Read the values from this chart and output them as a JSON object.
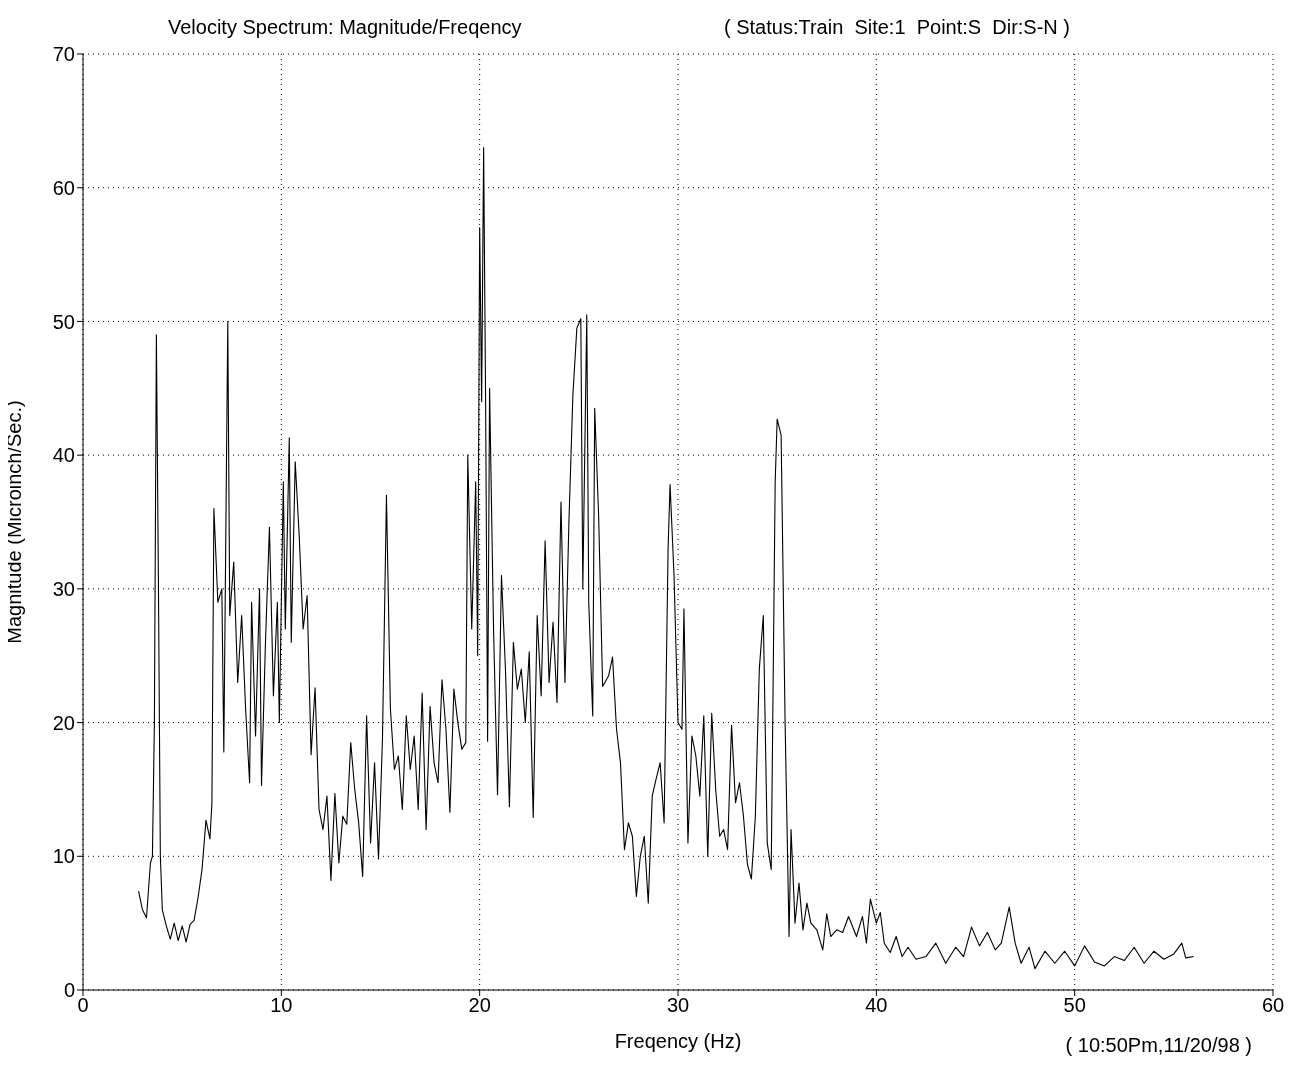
{
  "chart_data": {
    "type": "line",
    "title": "Velocity Spectrum: Magnitude/Freqency",
    "subtitle": "( Status:Train  Site:1  Point:S  Dir:S-N )",
    "xlabel": "Freqency (Hz)",
    "ylabel": "Magnitude (Microinch/Sec.)",
    "annotations": [
      "( 10:50Pm,11/20/98 )"
    ],
    "x": [
      2.8,
      3.0,
      3.2,
      3.4,
      3.5,
      3.6,
      3.7,
      3.8,
      3.9,
      4.0,
      4.2,
      4.4,
      4.6,
      4.8,
      5.0,
      5.2,
      5.4,
      5.6,
      5.8,
      6.0,
      6.2,
      6.4,
      6.5,
      6.6,
      6.8,
      7.0,
      7.1,
      7.3,
      7.4,
      7.6,
      7.8,
      8.0,
      8.2,
      8.4,
      8.5,
      8.7,
      8.9,
      9.0,
      9.2,
      9.4,
      9.6,
      9.8,
      9.9,
      10.1,
      10.2,
      10.4,
      10.5,
      10.7,
      10.9,
      11.1,
      11.3,
      11.5,
      11.7,
      11.9,
      12.1,
      12.3,
      12.5,
      12.7,
      12.9,
      13.1,
      13.3,
      13.5,
      13.7,
      13.9,
      14.1,
      14.3,
      14.5,
      14.7,
      14.9,
      15.1,
      15.3,
      15.5,
      15.7,
      15.9,
      16.1,
      16.3,
      16.5,
      16.7,
      16.9,
      17.1,
      17.3,
      17.5,
      17.7,
      17.9,
      18.1,
      18.3,
      18.5,
      18.7,
      18.9,
      19.1,
      19.3,
      19.4,
      19.6,
      19.8,
      19.9,
      20.0,
      20.1,
      20.2,
      20.3,
      20.4,
      20.5,
      20.7,
      20.9,
      21.1,
      21.3,
      21.5,
      21.7,
      21.9,
      22.1,
      22.3,
      22.5,
      22.7,
      22.9,
      23.1,
      23.3,
      23.5,
      23.7,
      23.9,
      24.1,
      24.3,
      24.5,
      24.7,
      24.9,
      25.1,
      25.2,
      25.4,
      25.5,
      25.7,
      25.8,
      26.0,
      26.2,
      26.5,
      26.7,
      26.9,
      27.1,
      27.3,
      27.5,
      27.7,
      27.9,
      28.1,
      28.3,
      28.5,
      28.7,
      28.9,
      29.1,
      29.3,
      29.5,
      29.6,
      29.8,
      30.0,
      30.2,
      30.3,
      30.5,
      30.7,
      30.9,
      31.1,
      31.3,
      31.5,
      31.7,
      31.9,
      32.1,
      32.3,
      32.5,
      32.7,
      32.9,
      33.1,
      33.3,
      33.5,
      33.7,
      33.9,
      34.1,
      34.3,
      34.5,
      34.7,
      34.9,
      35.0,
      35.2,
      35.4,
      35.6,
      35.7,
      35.9,
      36.1,
      36.3,
      36.5,
      36.7,
      37.0,
      37.3,
      37.5,
      37.7,
      38.0,
      38.3,
      38.6,
      39.0,
      39.3,
      39.5,
      39.7,
      40.0,
      40.2,
      40.4,
      40.7,
      41.0,
      41.3,
      41.6,
      42.0,
      42.5,
      43.0,
      43.5,
      44.0,
      44.4,
      44.8,
      45.2,
      45.6,
      46.0,
      46.3,
      46.7,
      47.0,
      47.3,
      47.7,
      48.0,
      48.5,
      49.0,
      49.5,
      50.0,
      50.5,
      51.0,
      51.5,
      52.0,
      52.5,
      53.0,
      53.5,
      54.0,
      54.5,
      55.0,
      55.4,
      55.6,
      56.0
    ],
    "series": [
      {
        "color": "#000000",
        "values": [
          7.4,
          6.0,
          5.4,
          9.5,
          10,
          20,
          49,
          31,
          10,
          6,
          4.8,
          3.8,
          5.0,
          3.7,
          4.8,
          3.6,
          4.9,
          5.2,
          6.9,
          9,
          12.7,
          11.3,
          14,
          36,
          29,
          30,
          17.8,
          50,
          28,
          32,
          23,
          28,
          21,
          15.5,
          29,
          19,
          30,
          15.3,
          26,
          34.6,
          22,
          29,
          20,
          38,
          27,
          41.3,
          26,
          39.5,
          34,
          27,
          29.5,
          17.6,
          22.6,
          13.5,
          12,
          14.5,
          8.2,
          14.7,
          9.5,
          13,
          12.4,
          18.5,
          15,
          12.5,
          8.5,
          20.5,
          11,
          17,
          9.8,
          18.8,
          37,
          21,
          16.5,
          17.5,
          13.5,
          20.5,
          16.5,
          19,
          13.5,
          22.2,
          12,
          21.2,
          17,
          15.5,
          23.2,
          19.5,
          13.3,
          22.5,
          20,
          18,
          18.5,
          40,
          27,
          38,
          25,
          57,
          44,
          63,
          44,
          18.6,
          45,
          27,
          14.6,
          31,
          24,
          13.7,
          26,
          22.5,
          24,
          20,
          25.3,
          12.9,
          28,
          22,
          33.6,
          23,
          27.5,
          21.5,
          36.5,
          23,
          35,
          44.5,
          49.5,
          50.2,
          30,
          50.5,
          29,
          20.5,
          43.5,
          35.4,
          22.7,
          23.5,
          24.9,
          19.5,
          17,
          10.5,
          12.5,
          11.5,
          7,
          10,
          11.5,
          6.5,
          14.5,
          15.8,
          17,
          12.5,
          33,
          37.8,
          31,
          20,
          19.5,
          28.5,
          11,
          19,
          17.5,
          14.5,
          20.5,
          10,
          20.7,
          15,
          11.5,
          12,
          10.5,
          19.8,
          14,
          15.5,
          13,
          9.4,
          8.3,
          13,
          24,
          28,
          11,
          9,
          38,
          42.7,
          41.5,
          20,
          4,
          12,
          5,
          8,
          4.5,
          6.5,
          5,
          4.5,
          3,
          5.7,
          4,
          4.5,
          4.3,
          5.5,
          4,
          5.5,
          3.5,
          6.8,
          5,
          5.8,
          3.5,
          2.8,
          4,
          2.5,
          3.2,
          2.3,
          2.5,
          3.5,
          2,
          3.2,
          2.5,
          4.7,
          3.3,
          4.3,
          3,
          3.5,
          6.2,
          3.5,
          2,
          3.2,
          1.6,
          2.9,
          2,
          2.9,
          1.8,
          3.3,
          2.1,
          1.8,
          2.5,
          2.2,
          3.2,
          2,
          2.9,
          2.3,
          2.7,
          3.5,
          2.4,
          2.5
        ]
      }
    ],
    "xlim": [
      0,
      60
    ],
    "xticks": [
      0,
      10,
      20,
      30,
      40,
      50,
      60
    ],
    "ylim": [
      0,
      70
    ],
    "yticks": [
      0,
      10,
      20,
      30,
      40,
      50,
      60,
      70
    ],
    "grid": true,
    "legend": false,
    "marker": "none",
    "line_style": "solid"
  }
}
